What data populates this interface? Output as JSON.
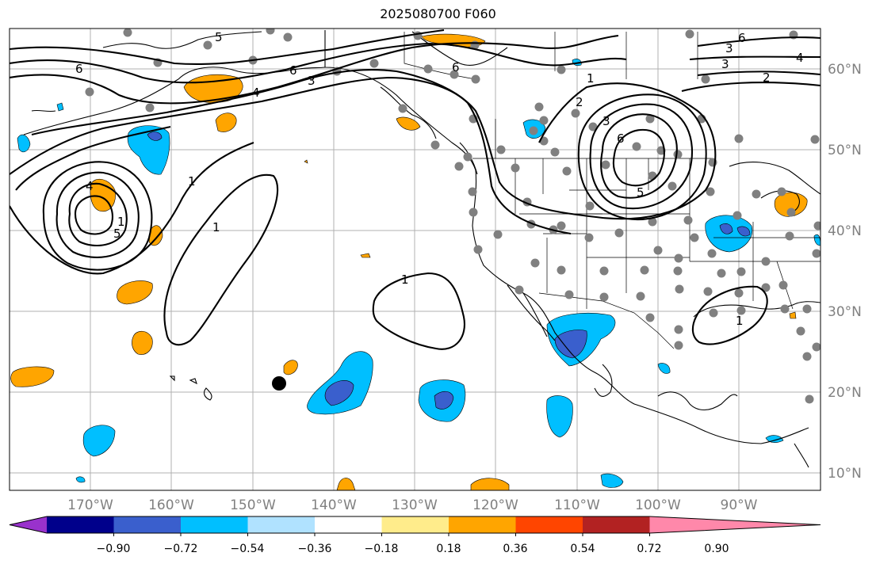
{
  "title": "2025080700 F060",
  "longitude_labels": [
    "170°W",
    "160°W",
    "150°W",
    "140°W",
    "130°W",
    "120°W",
    "110°W",
    "100°W",
    "90°W"
  ],
  "latitude_labels": [
    "60°N",
    "50°N",
    "40°N",
    "30°N",
    "20°N",
    "10°N"
  ],
  "colorbar": {
    "tick_labels": [
      "−0.90",
      "−0.72",
      "−0.54",
      "−0.36",
      "−0.18",
      "0.18",
      "0.36",
      "0.54",
      "0.72",
      "0.90"
    ],
    "colors": [
      "#9932cc",
      "#00008b",
      "#3a5fcd",
      "#00bfff",
      "#b0e2ff",
      "#ffffff",
      "#ffec8b",
      "#ffa500",
      "#ff4500",
      "#b22222",
      "#ff88aa"
    ]
  },
  "contour_labels": [
    "5",
    "6",
    "4",
    "3",
    "6",
    "6",
    "3",
    "2",
    "1",
    "4",
    "1",
    "1",
    "1",
    "3",
    "6",
    "5",
    "2",
    "1",
    "6",
    "3",
    "4",
    "5",
    "1"
  ],
  "fill_colors": {
    "orange": "#ffa500",
    "light_blue": "#00bfff",
    "dark_blue": "#3a5fcd",
    "yellow": "#ffec8b",
    "red": "#ff4500"
  },
  "station_color": "#808080"
}
